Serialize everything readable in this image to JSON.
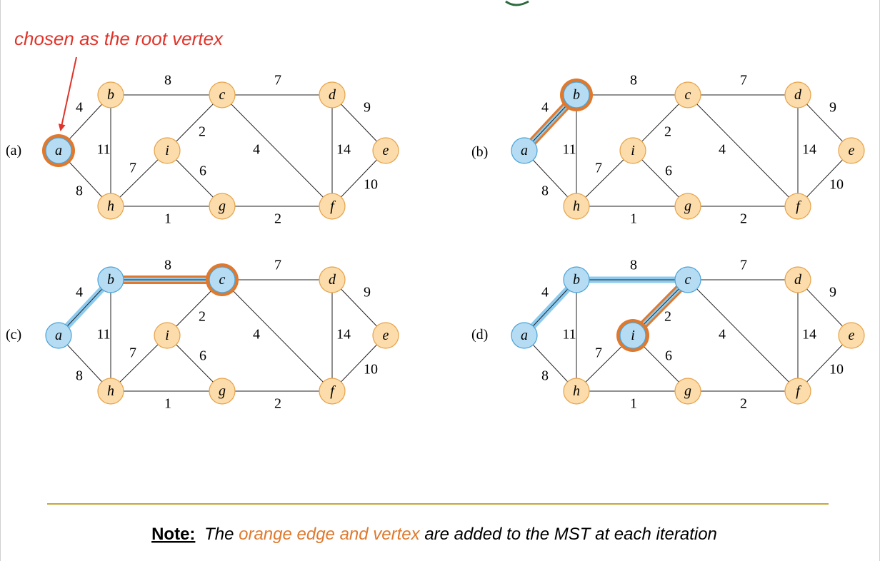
{
  "root_annotation": "chosen as the root vertex",
  "note": {
    "label": "Note:",
    "text_before": "The ",
    "highlight": "orange edge and vertex",
    "text_after": " are added to the MST at each iteration"
  },
  "colors": {
    "vertex_fill": "#fbdcaa",
    "vertex_stroke": "#e6a24a",
    "visited_fill": "#b5dcf3",
    "visited_stroke": "#4aa3d8",
    "tree_edge": "#8ccbef",
    "new_highlight": "#e0792d",
    "annotation": "#e0342a",
    "rule": "#c9a535",
    "title_fragment": "#2e6b3e"
  },
  "graph": {
    "vertices": [
      "a",
      "b",
      "c",
      "d",
      "e",
      "f",
      "g",
      "h",
      "i"
    ],
    "edges": [
      {
        "u": "a",
        "v": "b",
        "w": "4"
      },
      {
        "u": "a",
        "v": "h",
        "w": "8"
      },
      {
        "u": "b",
        "v": "c",
        "w": "8"
      },
      {
        "u": "b",
        "v": "h",
        "w": "11"
      },
      {
        "u": "c",
        "v": "d",
        "w": "7"
      },
      {
        "u": "c",
        "v": "i",
        "w": "2"
      },
      {
        "u": "c",
        "v": "f",
        "w": "4"
      },
      {
        "u": "d",
        "v": "e",
        "w": "9"
      },
      {
        "u": "d",
        "v": "f",
        "w": "14"
      },
      {
        "u": "e",
        "v": "f",
        "w": "10"
      },
      {
        "u": "f",
        "v": "g",
        "w": "2"
      },
      {
        "u": "g",
        "v": "h",
        "w": "1"
      },
      {
        "u": "g",
        "v": "i",
        "w": "6"
      },
      {
        "u": "h",
        "v": "i",
        "w": "7"
      }
    ]
  },
  "panels": [
    {
      "label": "(a)",
      "visited": [
        "a"
      ],
      "tree_edges": [],
      "new_vertex": "a",
      "new_edge": null
    },
    {
      "label": "(b)",
      "visited": [
        "a",
        "b"
      ],
      "tree_edges": [],
      "new_vertex": "b",
      "new_edge": [
        "a",
        "b"
      ]
    },
    {
      "label": "(c)",
      "visited": [
        "a",
        "b",
        "c"
      ],
      "tree_edges": [
        [
          "a",
          "b"
        ]
      ],
      "new_vertex": "c",
      "new_edge": [
        "b",
        "c"
      ]
    },
    {
      "label": "(d)",
      "visited": [
        "a",
        "b",
        "c",
        "i"
      ],
      "tree_edges": [
        [
          "a",
          "b"
        ],
        [
          "b",
          "c"
        ]
      ],
      "new_vertex": "i",
      "new_edge": [
        "c",
        "i"
      ]
    }
  ]
}
